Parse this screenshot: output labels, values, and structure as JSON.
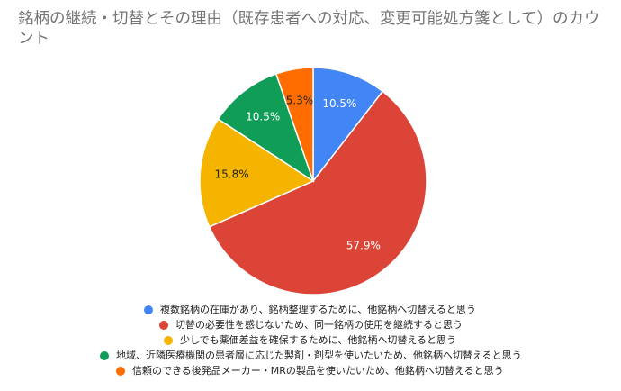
{
  "chart_data": {
    "type": "pie",
    "title": "銘柄の継続・切替とその理由（既存患者への対応、変更可能処方箋として）のカウント",
    "legend_position": "bottom",
    "slices": [
      {
        "label": "複数銘柄の在庫があり、銘柄整理するために、他銘柄へ切替えると思う",
        "value": 10.5,
        "display": "10.5%",
        "color": "#4285f4"
      },
      {
        "label": "切替の必要性を感じないため、同一銘柄の使用を継続すると思う",
        "value": 57.9,
        "display": "57.9%",
        "color": "#db4437"
      },
      {
        "label": "少しでも薬価差益を確保するために、他銘柄へ切替えると思う",
        "value": 15.8,
        "display": "15.8%",
        "color": "#f4b400"
      },
      {
        "label": "地域、近隣医療機関の患者層に応じた製剤・剤型を使いたいため、他銘柄へ切替えると思う",
        "value": 10.5,
        "display": "10.5%",
        "color": "#0f9d58"
      },
      {
        "label": "信頼のできる後発品メーカー・MRの製品を使いたいため、他銘柄へ切替えると思う",
        "value": 5.3,
        "display": "5.3%",
        "color": "#ff6d00"
      }
    ]
  }
}
